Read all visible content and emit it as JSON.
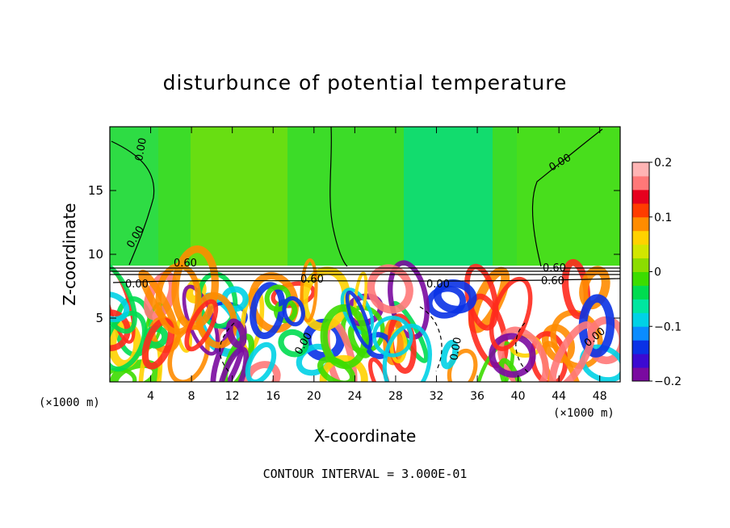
{
  "chart_data": {
    "type": "heatmap",
    "title": "disturbunce of potential temperature",
    "xlabel": "X-coordinate",
    "ylabel": "Z-coordinate",
    "x_unit_left": "(×1000 m)",
    "x_unit_right": "(×1000 m)",
    "xlim": [
      0,
      50
    ],
    "ylim": [
      0,
      20
    ],
    "xticks": [
      4,
      8,
      12,
      16,
      20,
      24,
      28,
      32,
      36,
      40,
      44,
      48
    ],
    "yticks": [
      5,
      10,
      15
    ],
    "colorbar": {
      "range": [
        -0.2,
        0.2
      ],
      "tick_values": [
        0.2,
        0.1,
        0,
        -0.1,
        -0.2
      ],
      "tick_labels": [
        "0.2",
        "0.1",
        "0",
        "−0.1",
        "−0.2"
      ],
      "colors": [
        "#7a0aa0",
        "#3c0ad2",
        "#0a32e6",
        "#0a8cff",
        "#00d2e6",
        "#00e6a0",
        "#00dc50",
        "#3cdc00",
        "#8cdc00",
        "#d2e600",
        "#ffd200",
        "#ff8c00",
        "#ff3c00",
        "#e6001e",
        "#ff7878",
        "#ffb4b4"
      ]
    },
    "contour_labels": [
      "0.00",
      "0.00",
      "0.00",
      "0.00",
      "0.00",
      "0.00",
      "0.00",
      "0.00",
      "0.60",
      "0.60",
      "0.60",
      "0.60"
    ],
    "footnote": "CONTOUR INTERVAL = 3.000E-01"
  }
}
